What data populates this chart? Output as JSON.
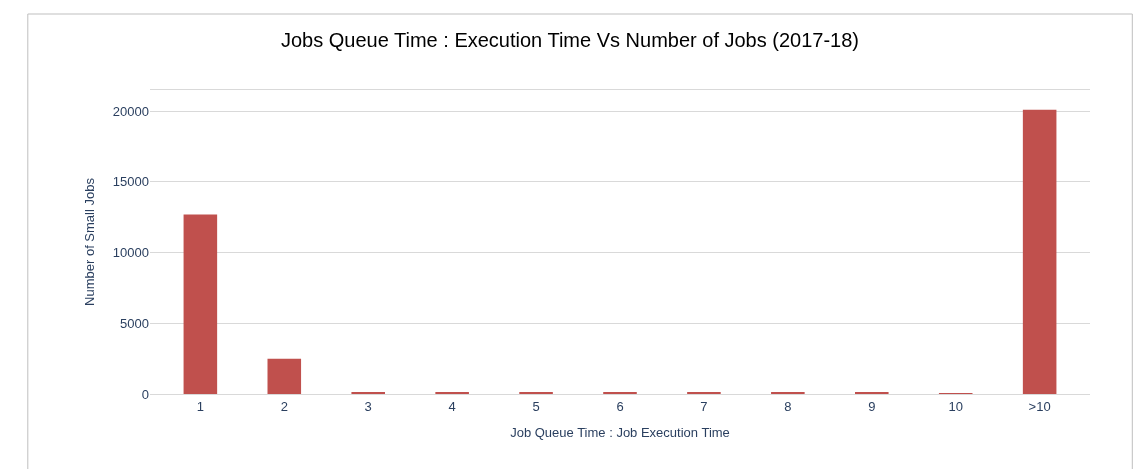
{
  "chart_data": {
    "type": "bar",
    "title": "Jobs Queue Time : Execution Time Vs Number of Jobs (2017-18)",
    "xlabel": "Job Queue Time : Job Execution Time",
    "ylabel": "Number of Small Jobs",
    "categories": [
      "1",
      "2",
      "3",
      "4",
      "5",
      "6",
      "7",
      "8",
      "9",
      "10",
      ">10"
    ],
    "values": [
      12700,
      2500,
      100,
      100,
      100,
      100,
      100,
      80,
      80,
      50,
      20100
    ],
    "color": "#c0504d",
    "ylim": [
      0,
      21500
    ],
    "yticks": [
      0,
      5000,
      10000,
      15000,
      20000
    ],
    "grid": "y"
  }
}
